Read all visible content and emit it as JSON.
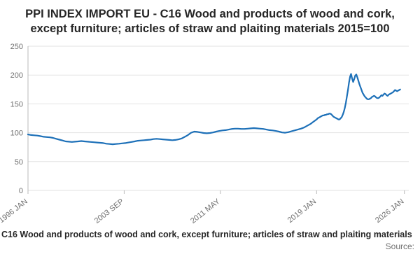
{
  "chart_data": {
    "type": "line",
    "title": "PPI INDEX IMPORT EU - C16 Wood and products of wood and cork, except furniture; articles of straw and plaiting materials 2015=100",
    "legend": "C16 Wood and products of wood and cork, except furniture; articles of straw and plaiting materials",
    "source": "Source:",
    "line_color": "#1d70b8",
    "grid_color": "#e2e2e2",
    "axis_color": "#b9b9b9",
    "text_color": "#707070",
    "legend_position": "bottom",
    "grid": true,
    "ylim": [
      0,
      250
    ],
    "xlim": [
      1996.0,
      2026.35
    ],
    "y_ticks": [
      0,
      50,
      100,
      150,
      200,
      250
    ],
    "x_ticks": [
      {
        "label": "1996 JAN",
        "x": 1996.0
      },
      {
        "label": "2003 SEP",
        "x": 2003.667
      },
      {
        "label": "2011 MAY",
        "x": 2011.333
      },
      {
        "label": "2019 JAN",
        "x": 2019.0
      },
      {
        "label": "2026 JAN",
        "x": 2026.0
      }
    ],
    "series": [
      {
        "name": "C16 Wood and products of wood and cork, except furniture; articles of straw and plaiting materials",
        "runs": [
          {
            "start": 1996.0,
            "step": 0.25,
            "values": [
              97,
              96,
              95.5,
              95,
              94,
              93,
              92.5,
              92,
              91,
              89.5,
              88,
              86.5,
              85,
              84.5,
              84,
              84.5,
              85,
              85.5,
              85,
              84.5,
              84,
              83.5,
              83,
              82.5,
              82,
              81,
              80.5,
              80,
              80.5,
              81,
              81.5,
              82,
              83,
              84,
              85,
              86,
              86.5,
              87,
              87.5,
              88,
              89,
              89.5,
              89,
              88.5,
              88,
              87.5,
              87,
              87.5,
              88.5,
              90,
              93,
              96,
              100,
              102,
              101.5,
              100.5,
              99.5,
              99,
              99.5,
              100.5,
              102,
              103,
              104,
              104.5,
              105.5,
              106.5,
              107,
              107,
              106.5,
              106.5,
              107,
              107.5,
              108,
              107.5,
              107,
              106.5,
              105.5,
              104.5,
              104,
              103,
              102,
              100.5,
              100,
              101,
              102.5,
              104,
              105.5,
              107,
              109,
              112,
              115,
              119
            ]
          },
          {
            "start": 2019.0,
            "step": 0.08333,
            "values": [
              123,
              125,
              126,
              127,
              128,
              129,
              130,
              130,
              131,
              131,
              132,
              132,
              133,
              133,
              132,
              130,
              128,
              127,
              126,
              125,
              124,
              123,
              123,
              125,
              127,
              131,
              136,
              143,
              152,
              163,
              174,
              187,
              197,
              202,
              194,
              188,
              193,
              199,
              201,
              196,
              190,
              184,
              179,
              174,
              169,
              166,
              163,
              161,
              159,
              158,
              158,
              159,
              160,
              162,
              163,
              164,
              163,
              161,
              160,
              160,
              161,
              163,
              165,
              164,
              166,
              168,
              167,
              165,
              164,
              166,
              167,
              168,
              169,
              170,
              172,
              174,
              173,
              172,
              173,
              174,
              175
            ]
          }
        ]
      }
    ]
  }
}
